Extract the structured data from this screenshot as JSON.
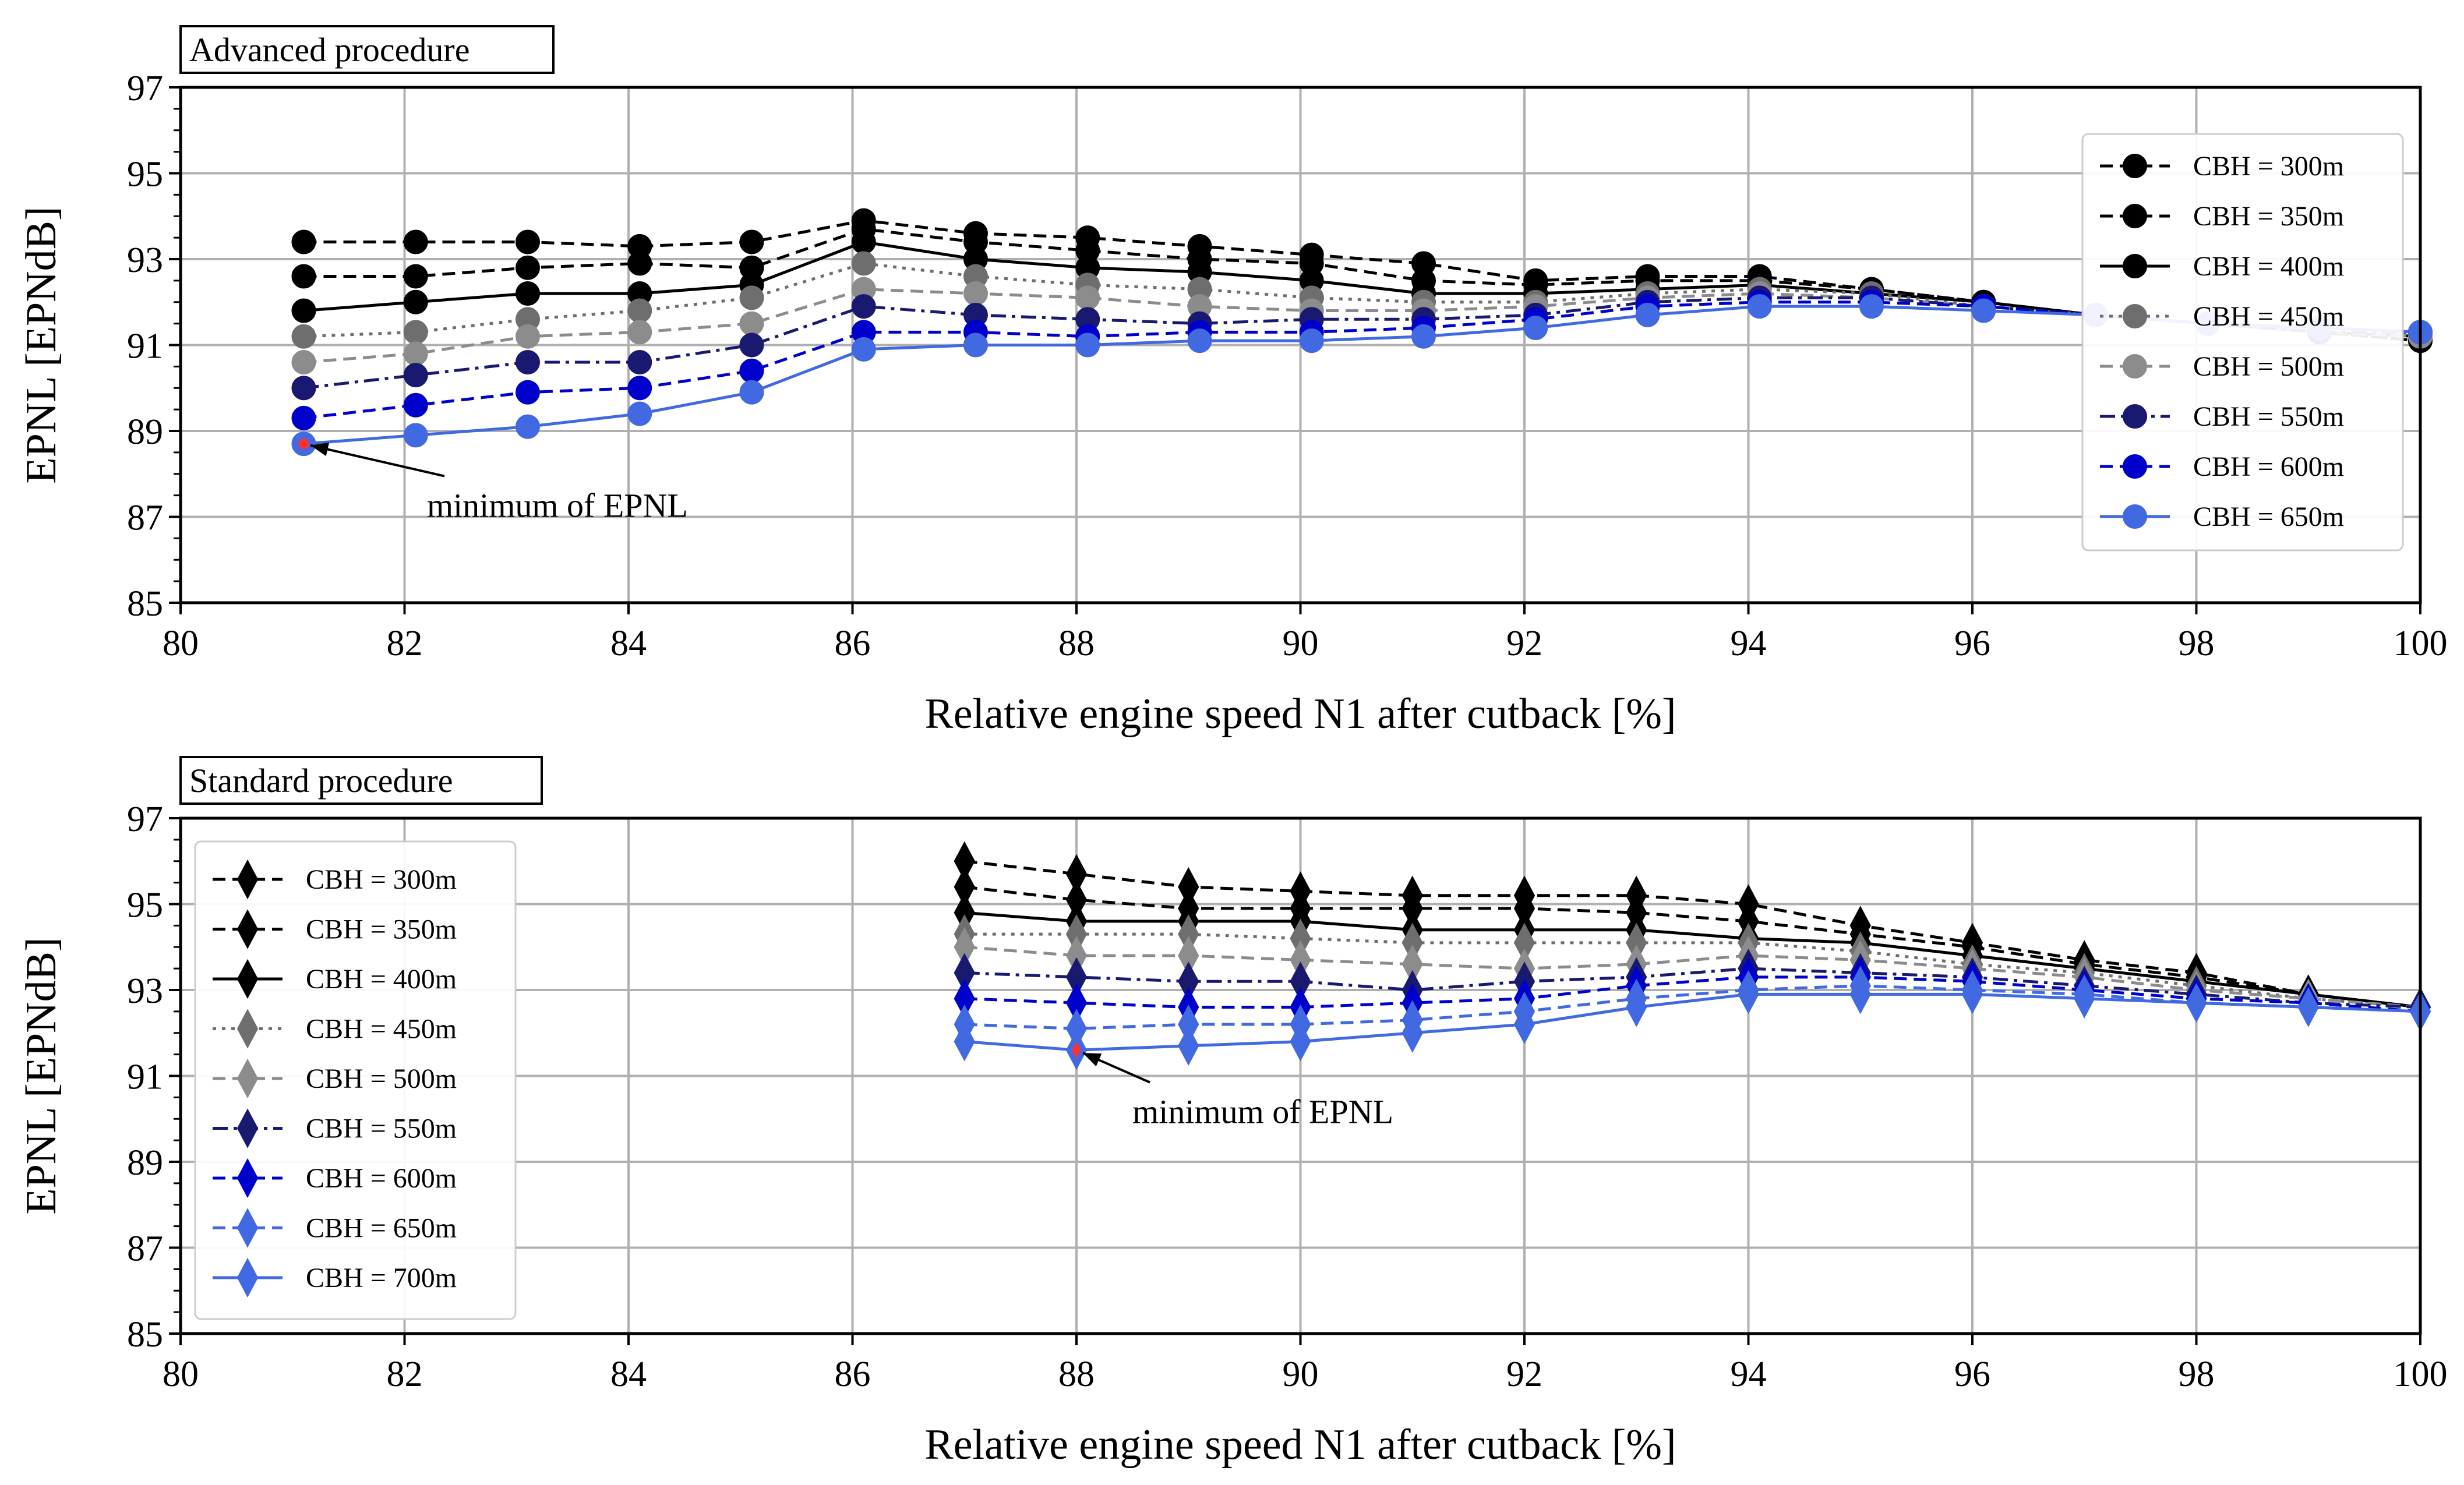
{
  "chart_data": [
    {
      "type": "line",
      "title": "Advanced procedure",
      "xlabel": "Relative engine speed N1 after cutback [%]",
      "ylabel": "EPNL [EPNdB]",
      "xlim": [
        80,
        100
      ],
      "ylim": [
        85,
        97
      ],
      "xticks": [
        "80",
        "82",
        "84",
        "86",
        "88",
        "90",
        "92",
        "94",
        "96",
        "98",
        "100"
      ],
      "yticks": [
        "85",
        "87",
        "89",
        "91",
        "93",
        "95",
        "97"
      ],
      "grid": true,
      "legend_position": "top-right",
      "marker": "circle",
      "x": [
        81.1,
        82.1,
        83.1,
        84.1,
        85.1,
        86.1,
        87.1,
        88.1,
        89.1,
        90.1,
        91.1,
        92.1,
        93.1,
        94.1,
        95.1,
        96.1,
        97.1,
        98.1,
        99.1,
        100
      ],
      "series": [
        {
          "name": "CBH = 300m",
          "color": "#000000",
          "dash": "dashed",
          "values": [
            93.4,
            93.4,
            93.4,
            93.3,
            93.4,
            93.9,
            93.6,
            93.5,
            93.3,
            93.1,
            92.9,
            92.5,
            92.6,
            92.6,
            92.3,
            92.0,
            91.7,
            91.5,
            91.3,
            91.1
          ]
        },
        {
          "name": "CBH = 350m",
          "color": "#000000",
          "dash": "dashed",
          "values": [
            92.6,
            92.6,
            92.8,
            92.9,
            92.8,
            93.7,
            93.4,
            93.2,
            93.0,
            92.9,
            92.5,
            92.4,
            92.5,
            92.5,
            92.3,
            92.0,
            91.7,
            91.5,
            91.3,
            91.1
          ]
        },
        {
          "name": "CBH = 400m",
          "color": "#000000",
          "dash": "solid",
          "values": [
            91.8,
            92.0,
            92.2,
            92.2,
            92.4,
            93.4,
            93.0,
            92.8,
            92.7,
            92.5,
            92.2,
            92.2,
            92.3,
            92.4,
            92.2,
            92.0,
            91.7,
            91.5,
            91.3,
            91.2
          ]
        },
        {
          "name": "CBH = 450m",
          "color": "#6e6e6e",
          "dash": "dotted",
          "values": [
            91.2,
            91.3,
            91.6,
            91.8,
            92.1,
            92.9,
            92.6,
            92.4,
            92.3,
            92.1,
            92.0,
            92.0,
            92.2,
            92.3,
            92.2,
            91.9,
            91.7,
            91.5,
            91.3,
            91.2
          ]
        },
        {
          "name": "CBH = 500m",
          "color": "#8c8c8c",
          "dash": "dashed",
          "values": [
            90.6,
            90.8,
            91.2,
            91.3,
            91.5,
            92.3,
            92.2,
            92.1,
            91.9,
            91.8,
            91.8,
            91.9,
            92.1,
            92.2,
            92.1,
            91.9,
            91.7,
            91.5,
            91.3,
            91.2
          ]
        },
        {
          "name": "CBH = 550m",
          "color": "#191970",
          "dash": "dashdot",
          "values": [
            90.0,
            90.3,
            90.6,
            90.6,
            91.0,
            91.9,
            91.7,
            91.6,
            91.5,
            91.6,
            91.6,
            91.7,
            92.0,
            92.1,
            92.1,
            91.9,
            91.7,
            91.5,
            91.3,
            91.3
          ]
        },
        {
          "name": "CBH = 600m",
          "color": "#0000cd",
          "dash": "dashed",
          "values": [
            89.3,
            89.6,
            89.9,
            90.0,
            90.4,
            91.3,
            91.3,
            91.2,
            91.3,
            91.3,
            91.4,
            91.6,
            91.9,
            92.0,
            92.0,
            91.9,
            91.7,
            91.5,
            91.4,
            91.3
          ]
        },
        {
          "name": "CBH = 650m",
          "color": "#4169e1",
          "dash": "solid",
          "values": [
            88.7,
            88.9,
            89.1,
            89.4,
            89.9,
            90.9,
            91.0,
            91.0,
            91.1,
            91.1,
            91.2,
            91.4,
            91.7,
            91.9,
            91.9,
            91.8,
            91.7,
            91.5,
            91.4,
            91.3
          ]
        }
      ],
      "annotation": {
        "text": "minimum of EPNL",
        "x": 81.1,
        "y": 88.7,
        "text_x": 82.2,
        "text_y": 87.0
      }
    },
    {
      "type": "line",
      "title": "Standard procedure",
      "xlabel": "Relative engine speed N1 after cutback [%]",
      "ylabel": "EPNL [EPNdB]",
      "xlim": [
        80,
        100
      ],
      "ylim": [
        85,
        97
      ],
      "xticks": [
        "80",
        "82",
        "84",
        "86",
        "88",
        "90",
        "92",
        "94",
        "96",
        "98",
        "100"
      ],
      "yticks": [
        "85",
        "87",
        "89",
        "91",
        "93",
        "95",
        "97"
      ],
      "grid": true,
      "legend_position": "top-left",
      "marker": "diamond",
      "x": [
        87,
        88,
        89,
        90,
        91,
        92,
        93,
        94,
        95,
        96,
        97,
        98,
        99,
        100
      ],
      "series": [
        {
          "name": "CBH = 300m",
          "color": "#000000",
          "dash": "dashed",
          "values": [
            96.0,
            95.7,
            95.4,
            95.3,
            95.2,
            95.2,
            95.2,
            95.0,
            94.5,
            94.1,
            93.7,
            93.4,
            92.9,
            92.6
          ]
        },
        {
          "name": "CBH = 350m",
          "color": "#000000",
          "dash": "dashed",
          "values": [
            95.4,
            95.1,
            94.9,
            94.9,
            94.9,
            94.9,
            94.8,
            94.6,
            94.3,
            94.0,
            93.6,
            93.3,
            92.9,
            92.6
          ]
        },
        {
          "name": "CBH = 400m",
          "color": "#000000",
          "dash": "solid",
          "values": [
            94.8,
            94.6,
            94.6,
            94.6,
            94.4,
            94.4,
            94.4,
            94.2,
            94.1,
            93.8,
            93.5,
            93.2,
            92.9,
            92.6
          ]
        },
        {
          "name": "CBH = 450m",
          "color": "#6e6e6e",
          "dash": "dotted",
          "values": [
            94.3,
            94.3,
            94.3,
            94.2,
            94.1,
            94.1,
            94.1,
            94.1,
            93.9,
            93.6,
            93.4,
            93.1,
            92.8,
            92.6
          ]
        },
        {
          "name": "CBH = 500m",
          "color": "#8c8c8c",
          "dash": "dashed",
          "values": [
            94.0,
            93.8,
            93.8,
            93.7,
            93.6,
            93.5,
            93.6,
            93.8,
            93.7,
            93.5,
            93.3,
            93.0,
            92.8,
            92.6
          ]
        },
        {
          "name": "CBH = 550m",
          "color": "#191970",
          "dash": "dashdot",
          "values": [
            93.4,
            93.3,
            93.2,
            93.2,
            93.0,
            93.2,
            93.3,
            93.5,
            93.4,
            93.3,
            93.1,
            92.9,
            92.7,
            92.6
          ]
        },
        {
          "name": "CBH = 600m",
          "color": "#0000cd",
          "dash": "dashed",
          "values": [
            92.8,
            92.7,
            92.6,
            92.6,
            92.7,
            92.8,
            93.1,
            93.3,
            93.3,
            93.2,
            93.0,
            92.8,
            92.7,
            92.5
          ]
        },
        {
          "name": "CBH = 650m",
          "color": "#4169e1",
          "dash": "dashed",
          "values": [
            92.2,
            92.1,
            92.2,
            92.2,
            92.3,
            92.5,
            92.8,
            93.0,
            93.1,
            93.0,
            92.9,
            92.7,
            92.6,
            92.5
          ]
        },
        {
          "name": "CBH = 700m",
          "color": "#4169e1",
          "dash": "solid",
          "values": [
            91.8,
            91.6,
            91.7,
            91.8,
            92.0,
            92.2,
            92.6,
            92.9,
            92.9,
            92.9,
            92.8,
            92.7,
            92.6,
            92.5
          ]
        }
      ],
      "annotation": {
        "text": "minimum of EPNL",
        "x": 88,
        "y": 91.6,
        "text_x": 88.5,
        "text_y": 89.9
      }
    }
  ]
}
